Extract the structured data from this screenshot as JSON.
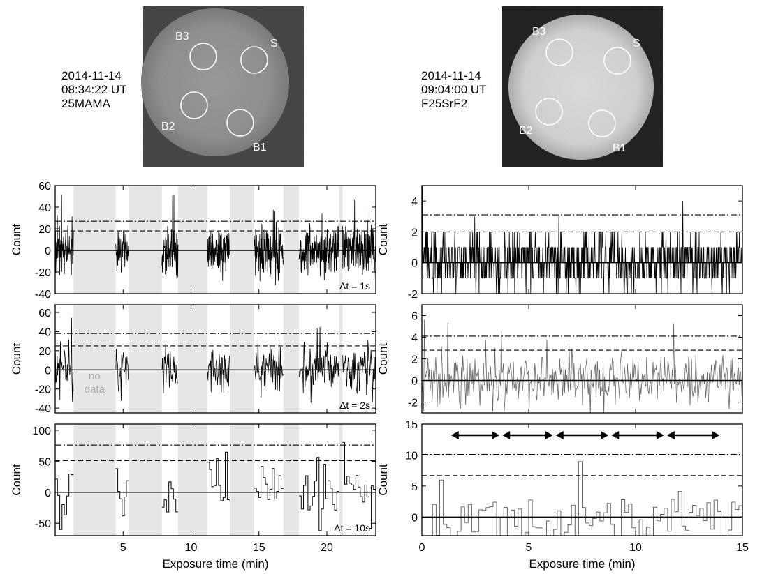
{
  "observations": [
    {
      "date": "2014-11-14",
      "time": "08:34:22 UT",
      "filter": "25MAMA"
    },
    {
      "date": "2014-11-14",
      "time": "09:04:00 UT",
      "filter": "F25SrF2"
    }
  ],
  "apertures": [
    "S",
    "B1",
    "B2",
    "B3"
  ],
  "colors": {
    "signal": "#000000",
    "signal_binned": "#666666",
    "gap_shade": "#e6e6e6",
    "no_data_text": "#aaaaaa"
  },
  "chart_data": [
    {
      "type": "line",
      "panel": "left-top",
      "ylabel": "Count",
      "xlabel": "",
      "xlim": [
        0,
        23.6
      ],
      "ylim": [
        -40,
        60
      ],
      "yticks": [
        -40,
        -20,
        0,
        20,
        40,
        60
      ],
      "xticks": [
        5,
        10,
        15,
        20
      ],
      "show_xtick_labels": false,
      "annotation": "Δt = 1s",
      "threshold_dashed": 18,
      "threshold_dashdot": 27,
      "gaps": [
        [
          1.35,
          4.45
        ],
        [
          5.4,
          7.85
        ],
        [
          9.05,
          11.2
        ],
        [
          12.85,
          14.65
        ],
        [
          16.8,
          17.95
        ],
        [
          20.9,
          21.15
        ]
      ],
      "segments": [
        [
          0,
          1.35
        ],
        [
          4.45,
          5.4
        ],
        [
          7.85,
          9.05
        ],
        [
          11.2,
          12.85
        ],
        [
          14.65,
          16.8
        ],
        [
          17.95,
          20.9
        ],
        [
          21.15,
          23.6
        ]
      ],
      "bin_min": 0.01667,
      "noise_sd": 11,
      "spike_max": 52,
      "style": "vlines"
    },
    {
      "type": "line",
      "panel": "left-middle",
      "ylabel": "Count",
      "xlabel": "",
      "xlim": [
        0,
        23.6
      ],
      "ylim": [
        -45,
        68
      ],
      "yticks": [
        -40,
        -20,
        0,
        20,
        40,
        60
      ],
      "xticks": [
        5,
        10,
        15,
        20
      ],
      "show_xtick_labels": false,
      "annotation": "Δt = 2s",
      "no_data_label": "no data",
      "threshold_dashed": 25,
      "threshold_dashdot": 38,
      "gaps": [
        [
          1.35,
          4.45
        ],
        [
          5.4,
          7.85
        ],
        [
          9.05,
          11.2
        ],
        [
          12.85,
          14.65
        ],
        [
          16.8,
          17.95
        ],
        [
          20.9,
          21.15
        ]
      ],
      "segments": [
        [
          0,
          1.35
        ],
        [
          4.45,
          5.4
        ],
        [
          7.85,
          9.05
        ],
        [
          11.2,
          12.85
        ],
        [
          14.65,
          16.8
        ],
        [
          17.95,
          20.9
        ],
        [
          21.15,
          23.6
        ]
      ],
      "bin_min": 0.03333,
      "noise_sd": 12,
      "spike_max": 68,
      "style": "vlines"
    },
    {
      "type": "line",
      "panel": "left-bottom",
      "ylabel": "Count",
      "xlabel": "Exposure time (min)",
      "xlim": [
        0,
        23.6
      ],
      "ylim": [
        -70,
        110
      ],
      "yticks": [
        -50,
        0,
        50,
        100
      ],
      "xticks": [
        5,
        10,
        15,
        20
      ],
      "show_xtick_labels": true,
      "annotation": "Δt = 10s",
      "threshold_dashed": 51,
      "threshold_dashdot": 76,
      "gaps": [
        [
          1.35,
          4.45
        ],
        [
          5.4,
          7.85
        ],
        [
          9.05,
          11.2
        ],
        [
          12.85,
          14.65
        ],
        [
          16.8,
          17.95
        ],
        [
          20.9,
          21.15
        ]
      ],
      "segments": [
        [
          0,
          1.35
        ],
        [
          4.45,
          5.4
        ],
        [
          7.85,
          9.05
        ],
        [
          11.2,
          12.85
        ],
        [
          14.65,
          16.8
        ],
        [
          17.95,
          20.9
        ],
        [
          21.15,
          23.6
        ]
      ],
      "bin_min": 0.16667,
      "noise_sd": 28,
      "spike_max": 96,
      "style": "steps"
    },
    {
      "type": "line",
      "panel": "right-top",
      "ylabel": "Count",
      "xlabel": "",
      "xlim": [
        0,
        15
      ],
      "ylim": [
        -2,
        5
      ],
      "yticks": [
        -2,
        0,
        2,
        4
      ],
      "xticks": [
        5,
        10
      ],
      "show_xtick_labels": false,
      "threshold_dashed": 2,
      "threshold_dashdot": 3.1,
      "segments": [
        [
          0,
          15
        ]
      ],
      "bin_min": 0.01667,
      "integer_counts": true,
      "count_min": -2,
      "count_max": 4,
      "spike_max": 5,
      "style": "vlines"
    },
    {
      "type": "line",
      "panel": "right-middle",
      "ylabel": "Count",
      "xlabel": "",
      "xlim": [
        0,
        15
      ],
      "ylim": [
        -3,
        7
      ],
      "yticks": [
        -2,
        0,
        2,
        4,
        6
      ],
      "xticks": [
        5,
        10
      ],
      "show_xtick_labels": false,
      "threshold_dashed": 2.8,
      "threshold_dashdot": 4.1,
      "segments": [
        [
          0,
          15
        ]
      ],
      "bin_min": 0.03333,
      "noise_sd": 1.1,
      "spike_max": 5.7,
      "style": "vlines",
      "color_key": "signal_binned"
    },
    {
      "type": "line",
      "panel": "right-bottom",
      "ylabel": "Count",
      "xlabel": "Exposure time (min)",
      "xlim": [
        0,
        15
      ],
      "ylim": [
        -3,
        15
      ],
      "yticks": [
        0,
        5,
        10,
        15
      ],
      "xticks": [
        0,
        5,
        10,
        15
      ],
      "show_xtick_labels": true,
      "threshold_dashed": 6.7,
      "threshold_dashdot": 10.1,
      "segments": [
        [
          0,
          15
        ]
      ],
      "bin_min": 0.16667,
      "noise_sd": 2.9,
      "spike_max": 12,
      "style": "steps",
      "color_key": "signal_binned",
      "arrows": [
        [
          1.3,
          3.7
        ],
        [
          3.7,
          6.2
        ],
        [
          6.2,
          8.8
        ],
        [
          8.8,
          11.4
        ],
        [
          11.4,
          14
        ]
      ]
    }
  ]
}
